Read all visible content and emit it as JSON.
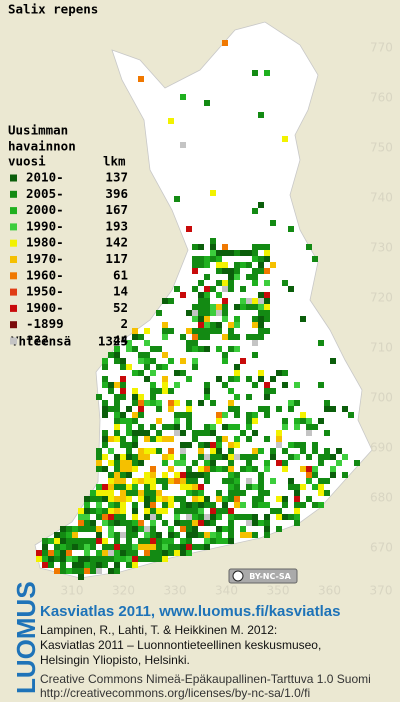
{
  "title": "Salix repens",
  "legend": {
    "header": [
      "Uusimman",
      "havainnon",
      "vuosi"
    ],
    "count_header": "lkm",
    "rows": [
      {
        "label": "2010-",
        "count": 137,
        "color": "#0b5e0b"
      },
      {
        "label": "2005-",
        "count": 396,
        "color": "#138a13"
      },
      {
        "label": "2000-",
        "count": 167,
        "color": "#1fb01f"
      },
      {
        "label": "1990-",
        "count": 193,
        "color": "#3ccd3c"
      },
      {
        "label": "1980-",
        "count": 142,
        "color": "#f2f200"
      },
      {
        "label": "1970-",
        "count": 117,
        "color": "#f5c000"
      },
      {
        "label": "1960-",
        "count": 61,
        "color": "#f07800"
      },
      {
        "label": "1950-",
        "count": 14,
        "color": "#e03c14"
      },
      {
        "label": "1900-",
        "count": 52,
        "color": "#c80a0a"
      },
      {
        "label": "-1899",
        "count": 2,
        "color": "#7a0a0a"
      },
      {
        "label": "???",
        "count": 44,
        "color": "#c4c4c4"
      }
    ],
    "total_label": "Yhteensä",
    "total": 1325
  },
  "map": {
    "northing_ticks": [
      770,
      760,
      750,
      740,
      730,
      720,
      710,
      700,
      690,
      680,
      670
    ],
    "easting_ticks": [
      310,
      320,
      330,
      340,
      350,
      360,
      370
    ],
    "license_badge": "BY-NC-SA"
  },
  "footer": {
    "brand": "LUOMUS",
    "headline": "Kasviatlas 2011, www.luomus.fi/kasviatlas",
    "citation": [
      "Lampinen, R., Lahti, T. & Heikkinen M. 2012:",
      "Kasviatlas 2011 – Luonnontieteellinen keskusmuseo,",
      "Helsingin Yliopisto, Helsinki."
    ],
    "license": [
      "Creative Commons Nimeä-Epäkaupallinen-Tarttuva 1.0 Suomi",
      "http://creativecommons.org/licenses/by-nc-sa/1.0/fi"
    ]
  }
}
